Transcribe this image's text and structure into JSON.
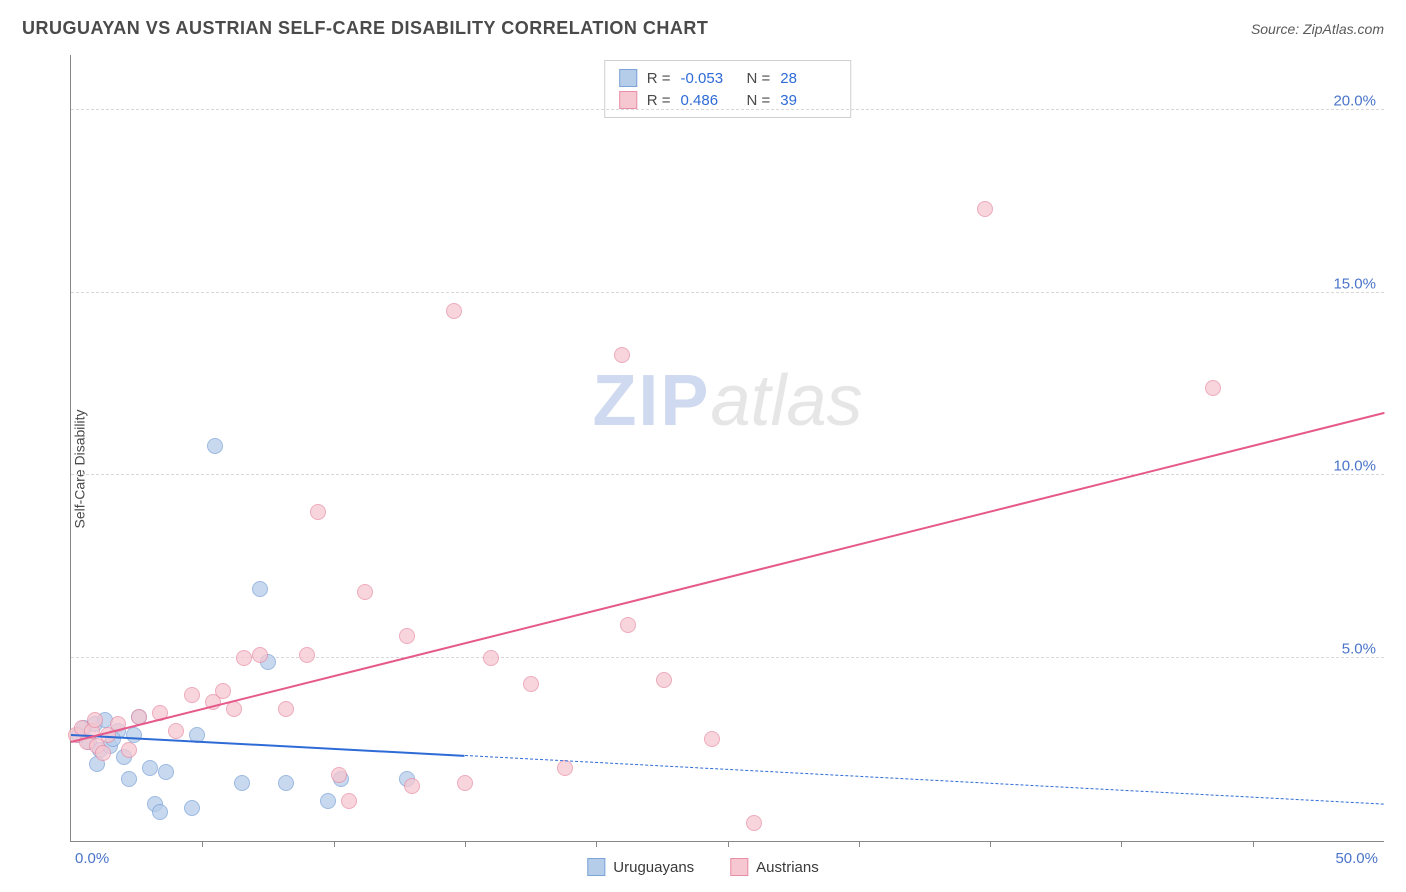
{
  "header": {
    "title": "URUGUAYAN VS AUSTRIAN SELF-CARE DISABILITY CORRELATION CHART",
    "source_prefix": "Source: ",
    "source_name": "ZipAtlas.com"
  },
  "yaxis": {
    "label": "Self-Care Disability"
  },
  "watermark": {
    "zip": "ZIP",
    "atlas": "atlas"
  },
  "chart": {
    "type": "scatter",
    "xlim": [
      0,
      50
    ],
    "ylim": [
      0,
      21.5
    ],
    "xtick_step": 5,
    "yticks": [
      5.0,
      10.0,
      15.0,
      20.0
    ],
    "ytick_labels": [
      "5.0%",
      "10.0%",
      "15.0%",
      "20.0%"
    ],
    "corner_labels": {
      "bl": "0.0%",
      "br": "50.0%"
    },
    "background_color": "#ffffff",
    "grid_color": "#d8d8d8",
    "axis_color": "#888888",
    "tick_label_color": "#4a74c9",
    "title_color": "#4a4a4a",
    "title_fontsize": 18,
    "label_fontsize": 14,
    "marker_radius": 8,
    "marker_opacity": 0.75,
    "series": [
      {
        "id": "uruguayans",
        "label": "Uruguayans",
        "fill": "#b6cdea",
        "stroke": "#7ca3d8",
        "R": "-0.053",
        "N": "28",
        "trend": {
          "y_at_x0": 2.9,
          "y_at_xmax": 1.0,
          "solid_until_x": 15,
          "color": "#2e6bd6",
          "width": 2
        },
        "points": [
          [
            0.3,
            2.9
          ],
          [
            0.5,
            3.1
          ],
          [
            0.7,
            2.7
          ],
          [
            0.9,
            3.2
          ],
          [
            1.1,
            2.5
          ],
          [
            1.3,
            3.3
          ],
          [
            1.5,
            2.6
          ],
          [
            1.8,
            3.0
          ],
          [
            2.0,
            2.3
          ],
          [
            2.2,
            1.7
          ],
          [
            2.6,
            3.4
          ],
          [
            3.0,
            2.0
          ],
          [
            3.2,
            1.0
          ],
          [
            3.4,
            0.8
          ],
          [
            3.6,
            1.9
          ],
          [
            4.6,
            0.9
          ],
          [
            4.8,
            2.9
          ],
          [
            5.5,
            10.8
          ],
          [
            6.5,
            1.6
          ],
          [
            7.2,
            6.9
          ],
          [
            7.5,
            4.9
          ],
          [
            8.2,
            1.6
          ],
          [
            9.8,
            1.1
          ],
          [
            10.3,
            1.7
          ],
          [
            12.8,
            1.7
          ],
          [
            1.0,
            2.1
          ],
          [
            1.6,
            2.8
          ],
          [
            2.4,
            2.9
          ]
        ]
      },
      {
        "id": "austrians",
        "label": "Austrians",
        "fill": "#f6c7d1",
        "stroke": "#e78fa6",
        "R": "0.486",
        "N": "39",
        "trend": {
          "y_at_x0": 2.7,
          "y_at_xmax": 11.7,
          "solid_until_x": 50,
          "color": "#e55a8a",
          "width": 2
        },
        "points": [
          [
            0.2,
            2.9
          ],
          [
            0.4,
            3.1
          ],
          [
            0.6,
            2.7
          ],
          [
            0.8,
            3.0
          ],
          [
            1.0,
            2.6
          ],
          [
            1.4,
            2.9
          ],
          [
            1.8,
            3.2
          ],
          [
            2.2,
            2.5
          ],
          [
            2.6,
            3.4
          ],
          [
            3.4,
            3.5
          ],
          [
            4.0,
            3.0
          ],
          [
            4.6,
            4.0
          ],
          [
            5.4,
            3.8
          ],
          [
            6.2,
            3.6
          ],
          [
            6.6,
            5.0
          ],
          [
            7.2,
            5.1
          ],
          [
            8.2,
            3.6
          ],
          [
            9.0,
            5.1
          ],
          [
            9.4,
            9.0
          ],
          [
            10.2,
            1.8
          ],
          [
            10.6,
            1.1
          ],
          [
            11.2,
            6.8
          ],
          [
            12.8,
            5.6
          ],
          [
            13.0,
            1.5
          ],
          [
            14.6,
            14.5
          ],
          [
            15.0,
            1.6
          ],
          [
            16.0,
            5.0
          ],
          [
            17.5,
            4.3
          ],
          [
            18.8,
            2.0
          ],
          [
            21.0,
            13.3
          ],
          [
            21.2,
            5.9
          ],
          [
            22.6,
            4.4
          ],
          [
            24.4,
            2.8
          ],
          [
            26.0,
            0.5
          ],
          [
            34.8,
            17.3
          ],
          [
            43.5,
            12.4
          ],
          [
            0.9,
            3.3
          ],
          [
            1.2,
            2.4
          ],
          [
            5.8,
            4.1
          ]
        ]
      }
    ]
  },
  "stats_box": {
    "r_label": "R =",
    "n_label": "N ="
  },
  "legend": {
    "items": [
      {
        "label": "Uruguayans",
        "fill": "#b6cdea",
        "stroke": "#7ca3d8"
      },
      {
        "label": "Austrians",
        "fill": "#f6c7d1",
        "stroke": "#e78fa6"
      }
    ]
  }
}
